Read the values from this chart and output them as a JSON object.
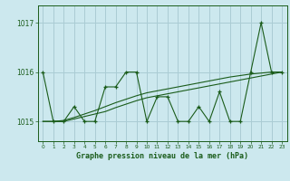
{
  "title": "Graphe pression niveau de la mer (hPa)",
  "background_color": "#cce8ee",
  "grid_color": "#aaccd4",
  "line_color": "#1a5c1a",
  "xlim": [
    -0.5,
    23.5
  ],
  "ylim": [
    1014.6,
    1017.35
  ],
  "yticks": [
    1015,
    1016,
    1017
  ],
  "xticks": [
    0,
    1,
    2,
    3,
    4,
    5,
    6,
    7,
    8,
    9,
    10,
    11,
    12,
    13,
    14,
    15,
    16,
    17,
    18,
    19,
    20,
    21,
    22,
    23
  ],
  "x": [
    0,
    1,
    2,
    3,
    4,
    5,
    6,
    7,
    8,
    9,
    10,
    11,
    12,
    13,
    14,
    15,
    16,
    17,
    18,
    19,
    20,
    21,
    22,
    23
  ],
  "y_main": [
    1016.0,
    1015.0,
    1015.0,
    1015.3,
    1015.0,
    1015.0,
    1015.7,
    1015.7,
    1016.0,
    1016.0,
    1015.0,
    1015.5,
    1015.5,
    1015.0,
    1015.0,
    1015.3,
    1015.0,
    1015.6,
    1015.0,
    1015.0,
    1016.0,
    1017.0,
    1016.0,
    1016.0
  ],
  "y_trend1": [
    1015.0,
    1015.0,
    1015.0,
    1015.05,
    1015.1,
    1015.15,
    1015.2,
    1015.28,
    1015.35,
    1015.42,
    1015.48,
    1015.52,
    1015.56,
    1015.6,
    1015.64,
    1015.68,
    1015.72,
    1015.76,
    1015.8,
    1015.84,
    1015.88,
    1015.92,
    1015.96,
    1016.0
  ],
  "y_trend2": [
    1015.0,
    1015.0,
    1015.02,
    1015.08,
    1015.15,
    1015.22,
    1015.3,
    1015.38,
    1015.45,
    1015.52,
    1015.58,
    1015.62,
    1015.66,
    1015.7,
    1015.74,
    1015.78,
    1015.82,
    1015.86,
    1015.9,
    1015.93,
    1015.96,
    1015.98,
    1016.0,
    1016.0
  ]
}
